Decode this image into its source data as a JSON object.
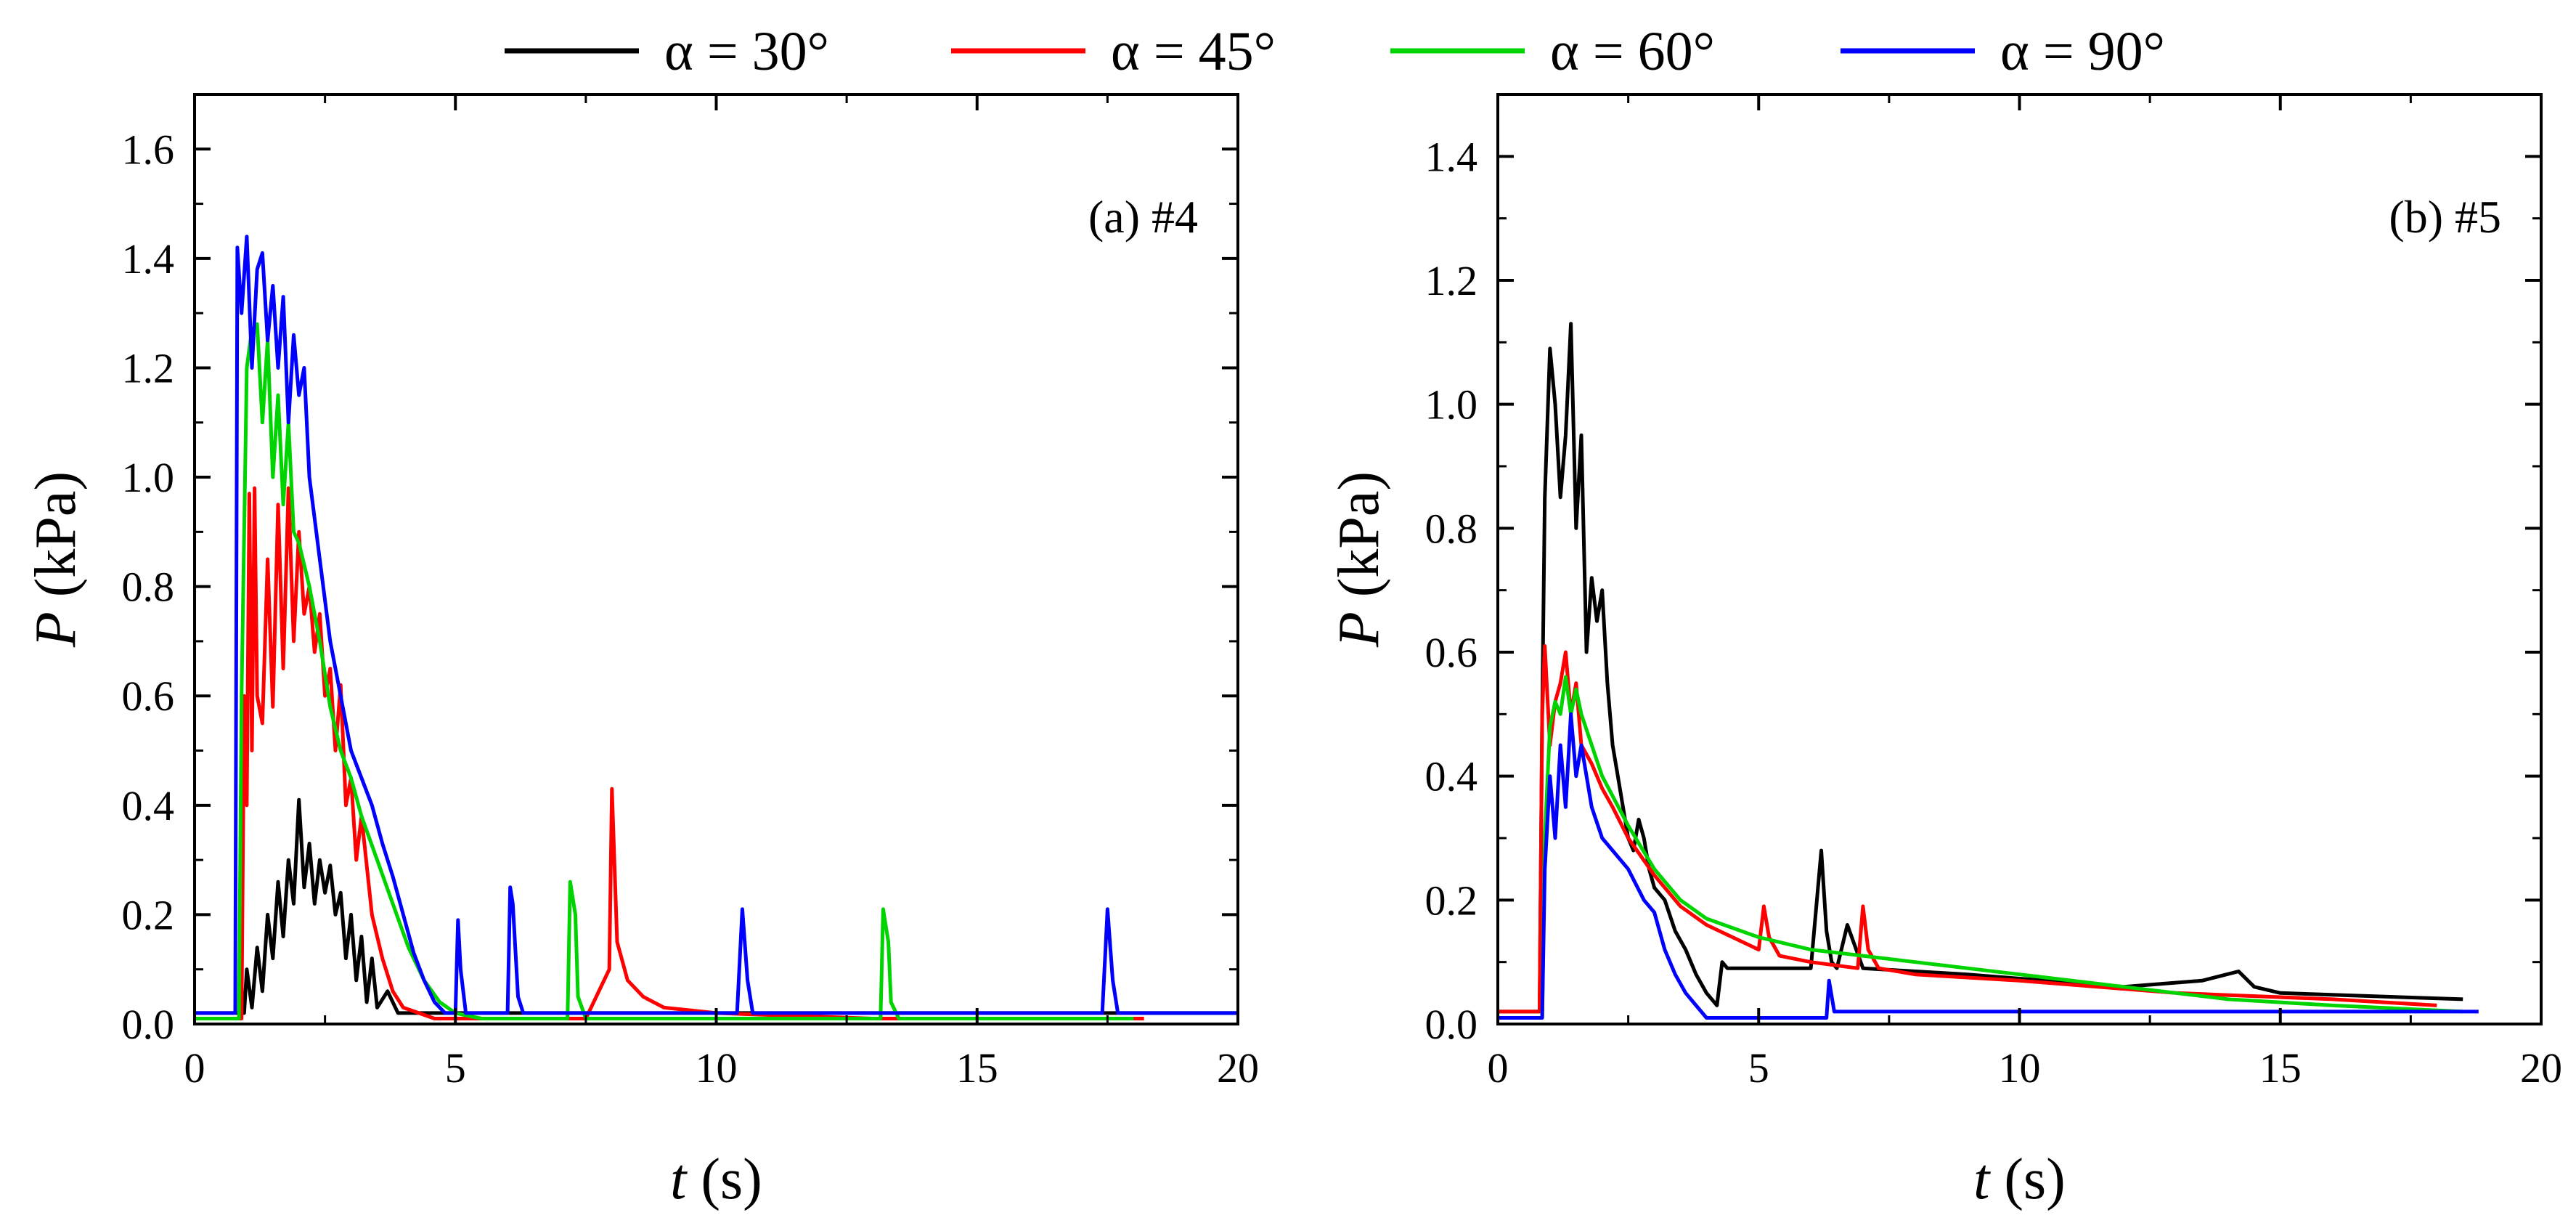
{
  "legend": [
    {
      "label": "α = 30°",
      "color": "#000000"
    },
    {
      "label": "α = 45°",
      "color": "#ff0000"
    },
    {
      "label": "α = 60°",
      "color": "#00d400"
    },
    {
      "label": "α = 90°",
      "color": "#0000ff"
    }
  ],
  "chart_data": [
    {
      "type": "line",
      "panel_label": "(a) #4",
      "xlabel_var": "t",
      "xlabel_unit": " (s)",
      "ylabel_var": "P",
      "ylabel_unit": " (kPa)",
      "xlim": [
        0,
        20
      ],
      "ylim": [
        0,
        1.7
      ],
      "xticks": [
        0,
        5,
        10,
        15,
        20
      ],
      "xtick_labels": [
        "0",
        "5",
        "10",
        "15",
        "20"
      ],
      "yticks": [
        0.0,
        0.2,
        0.4,
        0.6,
        0.8,
        1.0,
        1.2,
        1.4,
        1.6
      ],
      "ytick_labels": [
        "0.0",
        "0.2",
        "0.4",
        "0.6",
        "0.8",
        "1.0",
        "1.2",
        "1.4",
        "1.6"
      ],
      "series": [
        {
          "name": "α = 30°",
          "color": "#000000",
          "x": [
            0,
            0.95,
            1.0,
            1.1,
            1.2,
            1.3,
            1.4,
            1.5,
            1.6,
            1.7,
            1.8,
            1.9,
            2.0,
            2.1,
            2.2,
            2.3,
            2.4,
            2.5,
            2.6,
            2.7,
            2.8,
            2.9,
            3.0,
            3.1,
            3.2,
            3.3,
            3.4,
            3.5,
            3.7,
            3.9,
            4.0,
            20
          ],
          "y": [
            0.02,
            0.02,
            0.1,
            0.03,
            0.14,
            0.06,
            0.2,
            0.12,
            0.26,
            0.16,
            0.3,
            0.22,
            0.41,
            0.25,
            0.33,
            0.22,
            0.3,
            0.24,
            0.29,
            0.2,
            0.24,
            0.12,
            0.2,
            0.08,
            0.16,
            0.04,
            0.12,
            0.03,
            0.06,
            0.02,
            0.02,
            0.02
          ]
        },
        {
          "name": "α = 45°",
          "color": "#ff0000",
          "x": [
            0,
            0.9,
            0.95,
            1.0,
            1.05,
            1.1,
            1.15,
            1.2,
            1.3,
            1.4,
            1.5,
            1.6,
            1.7,
            1.8,
            1.9,
            2.0,
            2.1,
            2.2,
            2.3,
            2.4,
            2.5,
            2.6,
            2.7,
            2.8,
            2.9,
            3.0,
            3.1,
            3.2,
            3.4,
            3.6,
            3.8,
            4.0,
            4.3,
            4.6,
            5.0,
            6.0,
            7.5,
            7.95,
            8.0,
            8.1,
            8.3,
            8.6,
            9.0,
            10.0,
            13.0,
            16.0,
            18.2
          ],
          "y": [
            0.01,
            0.01,
            0.6,
            0.4,
            0.97,
            0.5,
            0.98,
            0.6,
            0.55,
            0.85,
            0.58,
            0.95,
            0.65,
            0.98,
            0.7,
            0.9,
            0.75,
            0.8,
            0.68,
            0.75,
            0.6,
            0.65,
            0.5,
            0.62,
            0.4,
            0.45,
            0.3,
            0.38,
            0.2,
            0.12,
            0.06,
            0.03,
            0.02,
            0.01,
            0.01,
            0.01,
            0.01,
            0.1,
            0.43,
            0.15,
            0.08,
            0.05,
            0.03,
            0.02,
            0.01,
            0.01,
            0.01
          ]
        },
        {
          "name": "α = 60°",
          "color": "#00d400",
          "x": [
            0,
            0.85,
            0.9,
            1.0,
            1.1,
            1.2,
            1.3,
            1.4,
            1.5,
            1.6,
            1.7,
            1.8,
            1.9,
            2.0,
            2.2,
            2.4,
            2.6,
            2.8,
            3.0,
            3.2,
            3.5,
            3.8,
            4.1,
            4.4,
            4.7,
            5.0,
            5.5,
            6.0,
            7.15,
            7.2,
            7.3,
            7.35,
            7.5,
            8.0,
            10.0,
            13.15,
            13.2,
            13.3,
            13.35,
            13.5,
            15.0,
            18.0
          ],
          "y": [
            0.01,
            0.01,
            0.6,
            1.2,
            1.27,
            1.28,
            1.1,
            1.25,
            1.0,
            1.15,
            0.95,
            1.1,
            0.9,
            0.88,
            0.8,
            0.7,
            0.58,
            0.5,
            0.45,
            0.38,
            0.3,
            0.22,
            0.14,
            0.08,
            0.04,
            0.02,
            0.01,
            0.01,
            0.01,
            0.26,
            0.2,
            0.05,
            0.01,
            0.01,
            0.01,
            0.01,
            0.21,
            0.15,
            0.04,
            0.01,
            0.01,
            0.01
          ]
        },
        {
          "name": "α = 90°",
          "color": "#0000ff",
          "x": [
            0,
            0.78,
            0.82,
            0.9,
            1.0,
            1.1,
            1.2,
            1.3,
            1.4,
            1.5,
            1.6,
            1.7,
            1.8,
            1.9,
            2.0,
            2.1,
            2.2,
            2.4,
            2.6,
            2.8,
            3.0,
            3.2,
            3.4,
            3.6,
            3.8,
            4.0,
            4.2,
            4.4,
            4.6,
            4.8,
            5.0,
            5.05,
            5.1,
            5.2,
            5.5,
            6.0,
            6.05,
            6.1,
            6.2,
            6.3,
            6.5,
            8.0,
            10.4,
            10.5,
            10.6,
            10.7,
            11.0,
            15.0,
            17.4,
            17.5,
            17.6,
            17.7,
            18.0,
            20.0
          ],
          "y": [
            0.02,
            0.02,
            1.42,
            1.3,
            1.44,
            1.2,
            1.38,
            1.41,
            1.25,
            1.35,
            1.2,
            1.33,
            1.1,
            1.26,
            1.15,
            1.2,
            1.0,
            0.85,
            0.7,
            0.6,
            0.5,
            0.45,
            0.4,
            0.33,
            0.27,
            0.2,
            0.13,
            0.08,
            0.04,
            0.02,
            0.02,
            0.19,
            0.1,
            0.02,
            0.02,
            0.02,
            0.25,
            0.22,
            0.05,
            0.02,
            0.02,
            0.02,
            0.02,
            0.21,
            0.08,
            0.02,
            0.02,
            0.02,
            0.02,
            0.21,
            0.08,
            0.02,
            0.02,
            0.02
          ]
        }
      ]
    },
    {
      "type": "line",
      "panel_label": "(b) #5",
      "xlabel_var": "t",
      "xlabel_unit": " (s)",
      "ylabel_var": "P",
      "ylabel_unit": " (kPa)",
      "xlim": [
        0,
        20
      ],
      "ylim": [
        0,
        1.5
      ],
      "xticks": [
        0,
        5,
        10,
        15,
        20
      ],
      "xtick_labels": [
        "0",
        "5",
        "10",
        "15",
        "20"
      ],
      "yticks": [
        0.0,
        0.2,
        0.4,
        0.6,
        0.8,
        1.0,
        1.2,
        1.4
      ],
      "ytick_labels": [
        "0.0",
        "0.2",
        "0.4",
        "0.6",
        "0.8",
        "1.0",
        "1.2",
        "1.4"
      ],
      "series": [
        {
          "name": "α = 30°",
          "color": "#000000",
          "x": [
            0,
            0.8,
            0.85,
            0.9,
            1.0,
            1.1,
            1.2,
            1.3,
            1.4,
            1.5,
            1.6,
            1.7,
            1.8,
            1.9,
            2.0,
            2.1,
            2.2,
            2.3,
            2.4,
            2.5,
            2.6,
            2.7,
            2.8,
            2.9,
            3.0,
            3.2,
            3.4,
            3.6,
            3.8,
            4.0,
            4.2,
            4.3,
            4.4,
            5.0,
            6.0,
            6.2,
            6.3,
            6.4,
            6.5,
            6.7,
            7.0,
            9.0,
            12.0,
            13.5,
            14.2,
            14.5,
            15.0,
            18.5
          ],
          "y": [
            0.02,
            0.02,
            0.5,
            0.85,
            1.09,
            1.0,
            0.85,
            0.95,
            1.13,
            0.8,
            0.95,
            0.6,
            0.72,
            0.65,
            0.7,
            0.55,
            0.45,
            0.4,
            0.35,
            0.3,
            0.28,
            0.33,
            0.3,
            0.25,
            0.22,
            0.2,
            0.15,
            0.12,
            0.08,
            0.05,
            0.03,
            0.1,
            0.09,
            0.09,
            0.09,
            0.28,
            0.15,
            0.1,
            0.09,
            0.16,
            0.09,
            0.08,
            0.06,
            0.07,
            0.085,
            0.06,
            0.05,
            0.04
          ]
        },
        {
          "name": "α = 45°",
          "color": "#ff0000",
          "x": [
            0,
            0.8,
            0.85,
            0.9,
            1.0,
            1.1,
            1.2,
            1.3,
            1.4,
            1.5,
            1.6,
            1.8,
            2.0,
            2.2,
            2.5,
            3.0,
            3.5,
            4.0,
            4.5,
            5.0,
            5.1,
            5.2,
            5.4,
            6.0,
            6.9,
            7.0,
            7.1,
            7.3,
            8.0,
            10.0,
            13.0,
            16.0,
            18.0
          ],
          "y": [
            0.02,
            0.02,
            0.5,
            0.61,
            0.45,
            0.52,
            0.55,
            0.6,
            0.5,
            0.55,
            0.45,
            0.42,
            0.38,
            0.35,
            0.3,
            0.24,
            0.19,
            0.16,
            0.14,
            0.12,
            0.19,
            0.14,
            0.11,
            0.1,
            0.09,
            0.19,
            0.12,
            0.09,
            0.08,
            0.07,
            0.05,
            0.04,
            0.03
          ]
        },
        {
          "name": "α = 60°",
          "color": "#00d400",
          "x": [
            0,
            0.85,
            0.9,
            1.0,
            1.1,
            1.2,
            1.3,
            1.4,
            1.5,
            1.6,
            1.8,
            2.0,
            2.5,
            3.0,
            3.5,
            4.0,
            5.0,
            6.0,
            7.0,
            8.0,
            10.0,
            12.0,
            14.0,
            16.0,
            18.5
          ],
          "y": [
            0.01,
            0.01,
            0.3,
            0.48,
            0.52,
            0.5,
            0.56,
            0.5,
            0.54,
            0.5,
            0.45,
            0.4,
            0.32,
            0.25,
            0.2,
            0.17,
            0.14,
            0.12,
            0.11,
            0.1,
            0.08,
            0.06,
            0.04,
            0.03,
            0.02
          ]
        },
        {
          "name": "α = 90°",
          "color": "#0000ff",
          "x": [
            0,
            0.85,
            0.9,
            1.0,
            1.1,
            1.2,
            1.3,
            1.4,
            1.5,
            1.6,
            1.8,
            2.0,
            2.2,
            2.5,
            2.8,
            3.0,
            3.2,
            3.4,
            3.6,
            3.8,
            4.0,
            4.5,
            5.5,
            6.3,
            6.35,
            6.45,
            6.6,
            8.0,
            12.0,
            16.0,
            18.8
          ],
          "y": [
            0.01,
            0.01,
            0.25,
            0.4,
            0.3,
            0.45,
            0.35,
            0.5,
            0.4,
            0.45,
            0.35,
            0.3,
            0.28,
            0.25,
            0.2,
            0.18,
            0.12,
            0.08,
            0.05,
            0.03,
            0.01,
            0.01,
            0.01,
            0.01,
            0.07,
            0.02,
            0.02,
            0.02,
            0.02,
            0.02,
            0.02
          ]
        }
      ]
    }
  ]
}
